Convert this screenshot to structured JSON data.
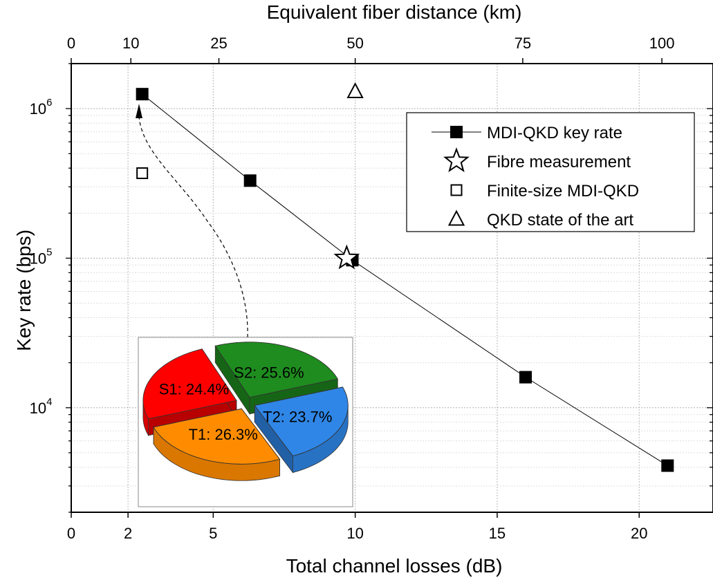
{
  "chart_data": {
    "type": "scatter",
    "xlabel": "Total channel losses (dB)",
    "x2label": "Equivalent fiber distance (km)",
    "ylabel": "Key rate (bps)",
    "xlim": [
      0,
      22.6
    ],
    "ylim": [
      2000,
      2000000
    ],
    "yscale": "log",
    "grid": true,
    "x_ticks": [
      {
        "value": 0,
        "label": "0"
      },
      {
        "value": 2,
        "label": "2"
      },
      {
        "value": 5,
        "label": "5"
      },
      {
        "value": 10,
        "label": "10"
      },
      {
        "value": 15,
        "label": "15"
      },
      {
        "value": 20,
        "label": "20"
      }
    ],
    "x2_ticks": [
      {
        "value": 0,
        "label": "0"
      },
      {
        "value": 2.1,
        "label": "10"
      },
      {
        "value": 5.2,
        "label": "25"
      },
      {
        "value": 10.0,
        "label": "50"
      },
      {
        "value": 15.9,
        "label": "75"
      },
      {
        "value": 20.8,
        "label": "100"
      }
    ],
    "y_ticks": [
      {
        "value": 10000,
        "base": "10",
        "exp": "4"
      },
      {
        "value": 100000,
        "base": "10",
        "exp": "5"
      },
      {
        "value": 1000000,
        "base": "10",
        "exp": "6"
      }
    ],
    "legend_position": "top-right",
    "series": [
      {
        "name": "MDI-QKD key rate",
        "marker": "filled-square",
        "connected": true,
        "color": "#000000",
        "x": [
          2.5,
          6.3,
          9.9,
          16.0,
          21.0
        ],
        "y": [
          1250000,
          330000,
          97000,
          16000,
          4100
        ]
      },
      {
        "name": "Fibre measurement",
        "marker": "open-star",
        "connected": false,
        "color": "#000000",
        "x": [
          9.7
        ],
        "y": [
          100000
        ]
      },
      {
        "name": "Finite-size MDI-QKD",
        "marker": "open-square",
        "connected": false,
        "color": "#000000",
        "x": [
          2.5
        ],
        "y": [
          370000
        ]
      },
      {
        "name": "QKD state of the art",
        "marker": "open-triangle",
        "connected": false,
        "color": "#000000",
        "x": [
          10.0
        ],
        "y": [
          1300000
        ]
      }
    ],
    "inset_pie": {
      "type": "pie",
      "slices": [
        {
          "label": "S2: 25.6%",
          "value": 25.6,
          "color": "#1e8c1e"
        },
        {
          "label": "T2: 23.7%",
          "value": 23.7,
          "color": "#2f86e6"
        },
        {
          "label": "T1: 26.3%",
          "value": 26.3,
          "color": "#ff8c00"
        },
        {
          "label": "S1: 24.4%",
          "value": 24.4,
          "color": "#ff0000"
        }
      ]
    }
  }
}
